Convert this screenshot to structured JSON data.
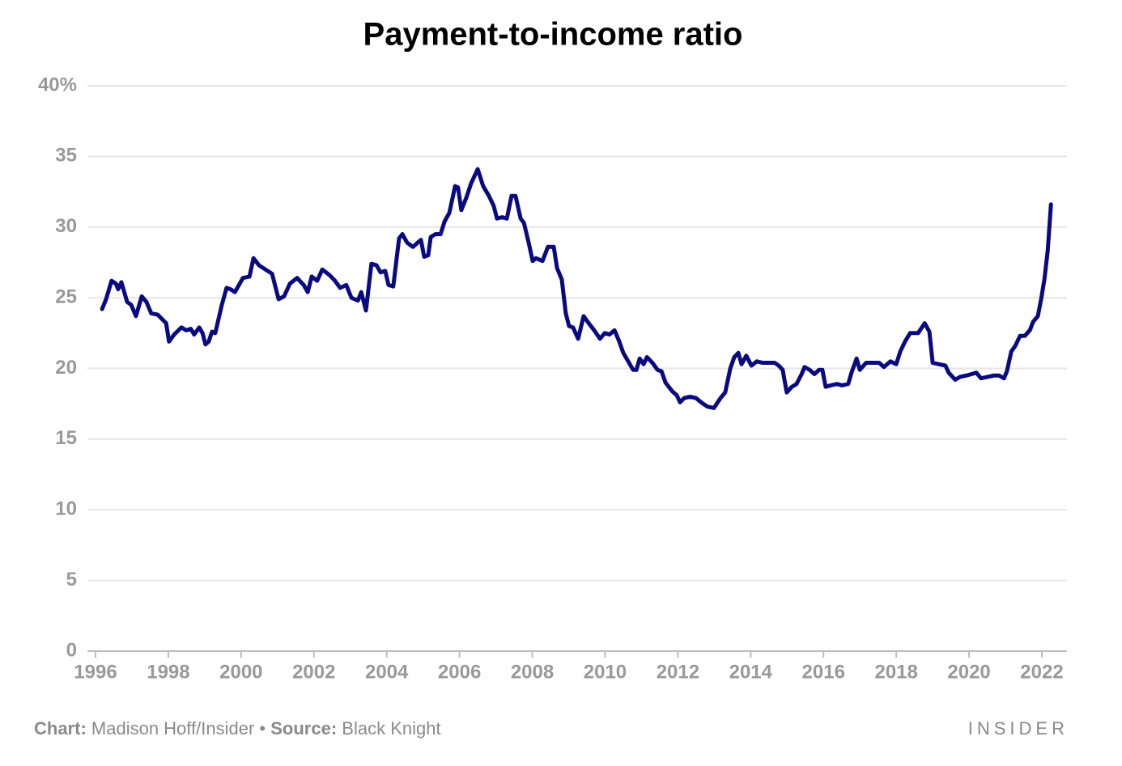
{
  "chart_data": {
    "type": "line",
    "title": "Payment-to-income ratio",
    "footer": {
      "chart_label": "Chart:",
      "chart_credit": "Madison Hoff/Insider",
      "separator": "•",
      "source_label": "Source:",
      "source": "Black Knight",
      "brand": "INSIDER"
    },
    "xlim": [
      1996,
      2022
    ],
    "xticks": [
      1996,
      1998,
      2000,
      2002,
      2004,
      2006,
      2008,
      2010,
      2012,
      2014,
      2016,
      2018,
      2020,
      2022
    ],
    "ylim": [
      0,
      40
    ],
    "yticks": [
      0,
      5,
      10,
      15,
      20,
      25,
      30,
      35,
      {
        "value": 40,
        "label": "40%"
      }
    ],
    "grid": true,
    "series": [
      {
        "name": "Payment-to-income ratio",
        "color": "#0a0a80",
        "x": [
          1996.18,
          1996.29,
          1996.44,
          1996.56,
          1996.62,
          1996.71,
          1996.87,
          1996.98,
          1997.11,
          1997.27,
          1997.4,
          1997.53,
          1997.71,
          1997.94,
          1998.02,
          1998.16,
          1998.36,
          1998.49,
          1998.62,
          1998.71,
          1998.85,
          1998.94,
          1999.02,
          1999.11,
          1999.2,
          1999.29,
          1999.38,
          1999.47,
          1999.6,
          1999.71,
          1999.83,
          1999.94,
          2000.05,
          2000.23,
          2000.34,
          2000.49,
          2000.67,
          2000.85,
          2001.03,
          2001.18,
          2001.34,
          2001.54,
          2001.72,
          2001.83,
          2001.94,
          2002.09,
          2002.23,
          2002.43,
          2002.58,
          2002.72,
          2002.89,
          2003.03,
          2003.21,
          2003.3,
          2003.43,
          2003.58,
          2003.72,
          2003.83,
          2003.96,
          2004.05,
          2004.18,
          2004.34,
          2004.43,
          2004.56,
          2004.72,
          2004.94,
          2005.03,
          2005.14,
          2005.21,
          2005.34,
          2005.48,
          2005.59,
          2005.72,
          2005.88,
          2005.96,
          2006.05,
          2006.19,
          2006.32,
          2006.5,
          2006.65,
          2006.81,
          2006.94,
          2007.03,
          2007.17,
          2007.3,
          2007.43,
          2007.54,
          2007.68,
          2007.77,
          2007.9,
          2008.01,
          2008.1,
          2008.28,
          2008.43,
          2008.59,
          2008.68,
          2008.81,
          2008.92,
          2009.01,
          2009.12,
          2009.26,
          2009.41,
          2009.55,
          2009.7,
          2009.86,
          2009.99,
          2010.12,
          2010.26,
          2010.39,
          2010.5,
          2010.77,
          2010.86,
          2010.95,
          2011.06,
          2011.15,
          2011.3,
          2011.44,
          2011.55,
          2011.66,
          2011.84,
          2011.97,
          2012.06,
          2012.17,
          2012.33,
          2012.5,
          2012.64,
          2012.81,
          2012.99,
          2013.17,
          2013.3,
          2013.44,
          2013.55,
          2013.66,
          2013.75,
          2013.88,
          2014.02,
          2014.17,
          2014.33,
          2014.51,
          2014.66,
          2014.77,
          2014.88,
          2014.99,
          2015.13,
          2015.26,
          2015.4,
          2015.48,
          2015.62,
          2015.75,
          2015.88,
          2015.97,
          2016.06,
          2016.2,
          2016.37,
          2016.51,
          2016.68,
          2016.77,
          2016.91,
          2017.0,
          2017.17,
          2017.35,
          2017.53,
          2017.66,
          2017.84,
          2018.0,
          2018.11,
          2018.24,
          2018.38,
          2018.6,
          2018.78,
          2018.91,
          2019.0,
          2019.18,
          2019.35,
          2019.44,
          2019.62,
          2019.75,
          2019.93,
          2020.07,
          2020.2,
          2020.33,
          2020.51,
          2020.69,
          2020.82,
          2020.96,
          2021.04,
          2021.16,
          2021.27,
          2021.4,
          2021.53,
          2021.67,
          2021.76,
          2021.89,
          2021.98,
          2022.07,
          2022.16,
          2022.25
        ],
        "values": [
          24.2,
          24.9,
          26.2,
          26.0,
          25.6,
          26.1,
          24.7,
          24.5,
          23.7,
          25.1,
          24.7,
          23.9,
          23.8,
          23.2,
          21.9,
          22.4,
          22.9,
          22.7,
          22.8,
          22.4,
          22.9,
          22.5,
          21.7,
          21.9,
          22.6,
          22.5,
          23.5,
          24.5,
          25.7,
          25.6,
          25.4,
          25.9,
          26.4,
          26.5,
          27.8,
          27.3,
          27.0,
          26.7,
          24.9,
          25.1,
          26.0,
          26.4,
          25.9,
          25.4,
          26.5,
          26.2,
          27.0,
          26.6,
          26.2,
          25.7,
          25.9,
          25.0,
          24.8,
          25.4,
          24.1,
          27.4,
          27.3,
          26.8,
          26.9,
          25.9,
          25.8,
          29.2,
          29.5,
          28.9,
          28.6,
          29.1,
          27.9,
          28.0,
          29.3,
          29.5,
          29.5,
          30.4,
          31.0,
          32.9,
          32.8,
          31.2,
          32.1,
          33.1,
          34.1,
          32.9,
          32.2,
          31.5,
          30.6,
          30.7,
          30.6,
          32.2,
          32.2,
          30.6,
          30.3,
          28.9,
          27.6,
          27.8,
          27.6,
          28.6,
          28.6,
          27.1,
          26.3,
          23.9,
          23.0,
          22.9,
          22.1,
          23.7,
          23.2,
          22.7,
          22.1,
          22.5,
          22.4,
          22.7,
          21.9,
          21.1,
          19.9,
          19.9,
          20.7,
          20.3,
          20.8,
          20.4,
          19.9,
          19.8,
          19.0,
          18.4,
          18.1,
          17.6,
          17.9,
          18.0,
          17.9,
          17.6,
          17.3,
          17.2,
          17.9,
          18.3,
          20.0,
          20.8,
          21.1,
          20.3,
          20.9,
          20.2,
          20.5,
          20.4,
          20.4,
          20.4,
          20.2,
          19.9,
          18.3,
          18.7,
          18.9,
          19.6,
          20.1,
          19.9,
          19.6,
          19.9,
          19.9,
          18.7,
          18.8,
          18.9,
          18.8,
          18.9,
          19.7,
          20.7,
          19.9,
          20.4,
          20.4,
          20.4,
          20.1,
          20.5,
          20.3,
          21.2,
          21.9,
          22.5,
          22.5,
          23.2,
          22.6,
          20.4,
          20.3,
          20.2,
          19.7,
          19.2,
          19.4,
          19.5,
          19.6,
          19.7,
          19.3,
          19.4,
          19.5,
          19.5,
          19.3,
          19.8,
          21.2,
          21.6,
          22.3,
          22.3,
          22.7,
          23.3,
          23.7,
          24.9,
          26.3,
          28.3,
          31.6
        ]
      }
    ]
  }
}
